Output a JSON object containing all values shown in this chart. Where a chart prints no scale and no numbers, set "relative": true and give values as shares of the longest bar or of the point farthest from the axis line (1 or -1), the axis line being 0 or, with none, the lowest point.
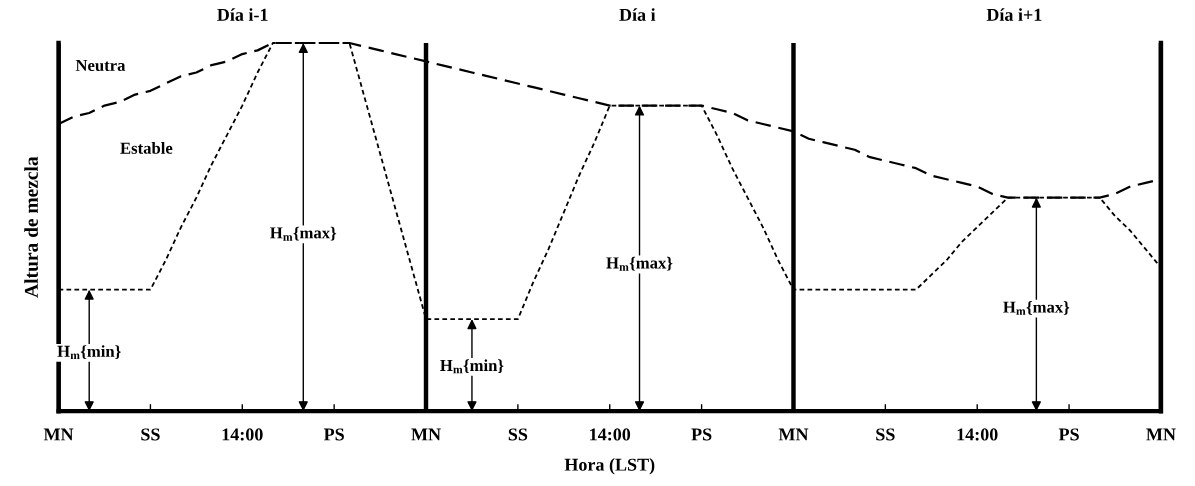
{
  "chart_data": {
    "type": "line",
    "relative": true,
    "xlabel": "Hora (LST)",
    "ylabel": "Altura de mezcla",
    "categories": [
      "MN",
      null,
      null,
      null,
      null,
      null,
      "SS",
      null,
      null,
      null,
      null,
      null,
      "14:00",
      null,
      null,
      null,
      null,
      null,
      "PS",
      null,
      null,
      null,
      null,
      null,
      "MN",
      null,
      null,
      null,
      null,
      null,
      "SS",
      null,
      null,
      null,
      null,
      null,
      "14:00",
      null,
      null,
      null,
      null,
      null,
      "PS",
      null,
      null,
      null,
      null,
      null,
      "MN",
      null,
      null,
      null,
      null,
      null,
      "SS",
      null,
      null,
      null,
      null,
      null,
      "14:00",
      null,
      null,
      null,
      null,
      null,
      "PS",
      null,
      null,
      null,
      null,
      null,
      "MN"
    ],
    "series": [
      {
        "name": "Neutra",
        "color": "#000000",
        "line_style": "dashed",
        "values": [
          0.78,
          0.8,
          0.81,
          0.83,
          0.84,
          0.86,
          0.87,
          0.89,
          0.91,
          0.92,
          0.94,
          0.95,
          0.97,
          0.98,
          1,
          1,
          1,
          1,
          1,
          1,
          0.99,
          0.98,
          0.97,
          0.96,
          0.95,
          0.94,
          0.93,
          0.92,
          0.91,
          0.9,
          0.89,
          0.88,
          0.87,
          0.86,
          0.85,
          0.84,
          0.83,
          0.83,
          0.83,
          0.83,
          0.83,
          0.83,
          0.83,
          0.82,
          0.81,
          0.79,
          0.78,
          0.77,
          0.76,
          0.74,
          0.73,
          0.72,
          0.71,
          0.69,
          0.68,
          0.67,
          0.66,
          0.64,
          0.63,
          0.62,
          0.61,
          0.59,
          0.58,
          0.58,
          0.58,
          0.58,
          0.58,
          0.58,
          0.58,
          0.59,
          0.61,
          0.62,
          0.63
        ]
      },
      {
        "name": "Estable",
        "color": "#000000",
        "line_style": "dotted",
        "values": [
          0.33,
          0.33,
          0.33,
          0.33,
          0.33,
          0.33,
          0.33,
          0.41,
          0.5,
          0.58,
          0.67,
          0.75,
          0.83,
          0.92,
          1,
          1,
          1,
          1,
          1,
          1,
          0.85,
          0.7,
          0.55,
          0.4,
          0.25,
          0.25,
          0.25,
          0.25,
          0.25,
          0.25,
          0.25,
          0.35,
          0.44,
          0.54,
          0.64,
          0.73,
          0.83,
          0.83,
          0.83,
          0.83,
          0.83,
          0.83,
          0.83,
          0.75,
          0.66,
          0.58,
          0.5,
          0.41,
          0.33,
          0.33,
          0.33,
          0.33,
          0.33,
          0.33,
          0.33,
          0.33,
          0.33,
          0.37,
          0.41,
          0.46,
          0.5,
          0.54,
          0.58,
          0.58,
          0.58,
          0.58,
          0.58,
          0.58,
          0.58,
          0.53,
          0.49,
          0.44,
          0.39
        ]
      }
    ],
    "annotations": [
      "Día i-1",
      "Día i",
      "Día i+1",
      {
        "text": "H$_{m}${min}",
        "y": 0.33
      },
      {
        "text": "H$_{m}${max}",
        "y": 1
      },
      {
        "text": "H$_{m}${min}",
        "y": 0.25
      },
      {
        "text": "H$_{m}${max}",
        "y": 0.83
      },
      {
        "text": "H$_{m}${max}",
        "y": 0.58
      }
    ],
    "grid": "x",
    "legend": false,
    "marker": "none"
  }
}
